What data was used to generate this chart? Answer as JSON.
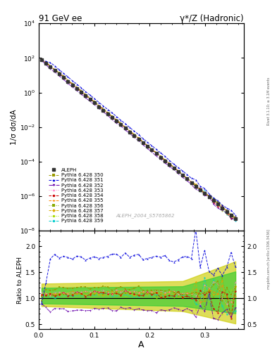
{
  "title_left": "91 GeV ee",
  "title_right": "γ*/Z (Hadronic)",
  "ylabel_main": "1/σ dσ/dA",
  "ylabel_ratio": "Ratio to ALEPH",
  "xlabel": "A",
  "watermark": "ALEPH_2004_S5765862",
  "rivet_label": "Rivet 3.1.10; ≥ 3.1M events",
  "arxiv_label": "mcplots.cern.ch [arXiv:1306.3436]",
  "legend_entries": [
    "ALEPH",
    "Pythia 6.428 350",
    "Pythia 6.428 351",
    "Pythia 6.428 352",
    "Pythia 6.428 353",
    "Pythia 6.428 354",
    "Pythia 6.428 355",
    "Pythia 6.428 356",
    "Pythia 6.428 357",
    "Pythia 6.428 358",
    "Pythia 6.428 359"
  ],
  "main_ylim_log": [
    -8,
    4
  ],
  "ratio_ylim": [
    0.4,
    2.3
  ],
  "ratio_yticks": [
    0.5,
    1.0,
    1.5,
    2.0
  ],
  "xlim": [
    0.0,
    0.37
  ],
  "background_color": "#ffffff",
  "band_color_inner": "#33cc33",
  "band_color_outer": "#cccc00",
  "series_colors": {
    "ALEPH": "#333333",
    "350": "#999900",
    "351": "#0000dd",
    "352": "#6600aa",
    "353": "#ff88cc",
    "354": "#cc0000",
    "355": "#ff8800",
    "356": "#88aa00",
    "357": "#ddaa00",
    "358": "#aadd00",
    "359": "#00cccc"
  }
}
